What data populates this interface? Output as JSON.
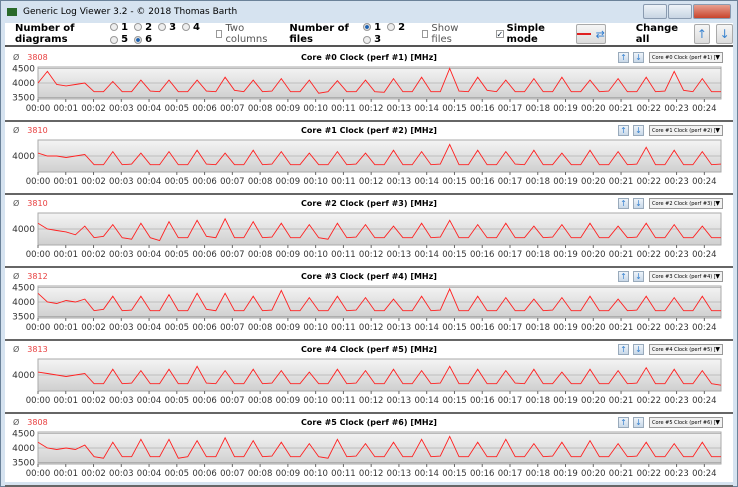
{
  "window": {
    "title": "Generic Log Viewer 3.2 - © 2018 Thomas Barth"
  },
  "toolbar": {
    "diagrams_label": "Number of diagrams",
    "diagram_options": [
      "1",
      "2",
      "3",
      "4",
      "5",
      "6"
    ],
    "diagrams_selected": "6",
    "two_columns": "Two columns",
    "files_label": "Number of files",
    "file_options": [
      "1",
      "2",
      "3"
    ],
    "files_selected": "1",
    "show_files": "Show files",
    "simple_mode": "Simple mode",
    "simple_mode_checked": true,
    "change_all": "Change all"
  },
  "colors": {
    "line": "#ff2020",
    "accent": "#3a84d0"
  },
  "chart_data": [
    {
      "type": "line",
      "title": "Core #0 Clock (perf #1) [MHz]",
      "avg": "3808",
      "select": "Core #0 Clock (perf #1) [V",
      "yticks": [
        3500,
        4000,
        4500
      ],
      "ylim": [
        3450,
        4550
      ],
      "xlim": [
        0,
        24.6
      ],
      "values": [
        4000,
        4400,
        3950,
        3900,
        3950,
        4000,
        3700,
        3700,
        4050,
        3700,
        3700,
        4100,
        3720,
        3700,
        4100,
        3700,
        3700,
        4100,
        3720,
        3700,
        4200,
        3750,
        3700,
        4100,
        3700,
        3720,
        4150,
        3700,
        3700,
        4100,
        3650,
        3700,
        4080,
        3700,
        3700,
        4100,
        3700,
        3680,
        4150,
        3700,
        3700,
        4200,
        3700,
        3700,
        4500,
        3720,
        3700,
        4200,
        3750,
        3700,
        4100,
        3700,
        3700,
        4150,
        3700,
        3700,
        4200,
        3700,
        3700,
        4100,
        3700,
        3720,
        4150,
        3700,
        3700,
        4200,
        3700,
        3720,
        4400,
        3750,
        3700,
        4150,
        3700,
        3700
      ]
    },
    {
      "type": "line",
      "title": "Core #1 Clock (perf #2) [MHz]",
      "avg": "3810",
      "select": "Core #1 Clock (perf #2) [V",
      "yticks": [
        4000
      ],
      "ylim": [
        3450,
        4550
      ],
      "xlim": [
        0,
        24.6
      ],
      "values": [
        4100,
        4000,
        4000,
        3950,
        4000,
        4050,
        3700,
        3700,
        4150,
        3700,
        3720,
        4100,
        3700,
        3700,
        4150,
        3700,
        3700,
        4200,
        3720,
        3700,
        4100,
        3700,
        3700,
        4200,
        3700,
        3720,
        4150,
        3700,
        3700,
        4100,
        3700,
        3700,
        4150,
        3700,
        3720,
        4100,
        3700,
        3700,
        4200,
        3700,
        3700,
        4150,
        3700,
        3720,
        4400,
        3700,
        3700,
        4200,
        3700,
        3700,
        4150,
        3720,
        3700,
        4200,
        3700,
        3700,
        4100,
        3700,
        3700,
        4200,
        3700,
        3700,
        4150,
        3700,
        3720,
        4300,
        3700,
        3700,
        4200,
        3700,
        3700,
        4150,
        3700,
        3720
      ]
    },
    {
      "type": "line",
      "title": "Core #2 Clock (perf #3) [MHz]",
      "avg": "3810",
      "select": "Core #2 Clock (perf #3) [V",
      "yticks": [
        4000
      ],
      "ylim": [
        3450,
        4550
      ],
      "xlim": [
        0,
        24.6
      ],
      "values": [
        4200,
        4000,
        3950,
        3900,
        3800,
        4100,
        3700,
        3750,
        4150,
        3700,
        3650,
        4200,
        3700,
        3600,
        4250,
        3700,
        3700,
        4300,
        3750,
        3700,
        4350,
        3700,
        3700,
        4250,
        3700,
        3720,
        4200,
        3700,
        3700,
        4150,
        3700,
        3650,
        4200,
        3700,
        3720,
        4150,
        3700,
        3700,
        4100,
        3700,
        3700,
        4200,
        3700,
        3720,
        4300,
        3700,
        3700,
        4150,
        3700,
        3700,
        4200,
        3700,
        3700,
        4100,
        3700,
        3720,
        4150,
        3700,
        3700,
        4200,
        3700,
        3700,
        4100,
        3700,
        3720,
        4200,
        3700,
        3700,
        4150,
        3700,
        3700,
        4100,
        3700,
        3700
      ]
    },
    {
      "type": "line",
      "title": "Core #3 Clock (perf #4) [MHz]",
      "avg": "3812",
      "select": "Core #3 Clock (perf #4) [V",
      "yticks": [
        3500,
        4000,
        4500
      ],
      "ylim": [
        3450,
        4550
      ],
      "xlim": [
        0,
        24.6
      ],
      "values": [
        4300,
        4000,
        3950,
        4050,
        4000,
        4100,
        3700,
        3750,
        4200,
        3700,
        3720,
        4200,
        3700,
        3700,
        4250,
        3700,
        3700,
        4300,
        3750,
        3700,
        4300,
        3700,
        3700,
        4200,
        3700,
        3720,
        4400,
        3700,
        3700,
        4150,
        3700,
        3700,
        4200,
        3700,
        3720,
        4150,
        3700,
        3700,
        4100,
        3700,
        3700,
        4200,
        3700,
        3720,
        4450,
        3700,
        3700,
        4200,
        3700,
        3700,
        4150,
        3700,
        3700,
        4100,
        3700,
        3720,
        4150,
        3700,
        3700,
        4200,
        3700,
        3700,
        4100,
        3700,
        3720,
        4200,
        3700,
        3700,
        4150,
        3700,
        3700,
        4200,
        3700,
        3700
      ]
    },
    {
      "type": "line",
      "title": "Core #4 Clock (perf #5) [MHz]",
      "avg": "3813",
      "select": "Core #4 Clock (perf #5) [V",
      "yticks": [
        4000
      ],
      "ylim": [
        3450,
        4550
      ],
      "xlim": [
        0,
        24.6
      ],
      "values": [
        4100,
        4050,
        4000,
        3950,
        4000,
        4050,
        3700,
        3700,
        4200,
        3700,
        3720,
        4150,
        3700,
        3700,
        4200,
        3700,
        3700,
        4300,
        3720,
        3700,
        4150,
        3700,
        3700,
        4200,
        3700,
        3720,
        4150,
        3700,
        3700,
        4100,
        3700,
        3700,
        4200,
        3700,
        3720,
        4150,
        3700,
        3700,
        4200,
        3700,
        3700,
        4150,
        3700,
        3720,
        4300,
        3700,
        3700,
        4200,
        3700,
        3700,
        4150,
        3720,
        3700,
        4200,
        3700,
        3700,
        4100,
        3700,
        3700,
        4200,
        3700,
        3700,
        4150,
        3700,
        3720,
        4250,
        3700,
        3700,
        4200,
        3700,
        3700,
        4150,
        3700,
        3650
      ]
    },
    {
      "type": "line",
      "title": "Core #5 Clock (perf #6) [MHz]",
      "avg": "3808",
      "select": "Core #5 Clock (perf #6) [V",
      "yticks": [
        3500,
        4000,
        4500
      ],
      "ylim": [
        3450,
        4550
      ],
      "xlim": [
        0,
        24.6
      ],
      "values": [
        4200,
        4000,
        3950,
        4000,
        3950,
        4100,
        3700,
        3650,
        4200,
        3700,
        3700,
        4300,
        3700,
        3700,
        4300,
        3650,
        3700,
        4250,
        3700,
        3700,
        4350,
        3700,
        3700,
        4250,
        3700,
        3720,
        4200,
        3700,
        3700,
        4150,
        3700,
        3650,
        4300,
        3700,
        3720,
        4150,
        3700,
        3700,
        4200,
        3700,
        3700,
        4300,
        3700,
        3720,
        4400,
        3700,
        3700,
        4200,
        3700,
        3700,
        4300,
        3700,
        3700,
        4150,
        3700,
        3720,
        4200,
        3700,
        3700,
        4250,
        3700,
        3700,
        4150,
        3700,
        3720,
        4200,
        3700,
        3700,
        4150,
        3700,
        3700,
        4200,
        3700,
        3700
      ]
    }
  ],
  "xticks": [
    "00:00",
    "00:01",
    "00:02",
    "00:03",
    "00:04",
    "00:05",
    "00:06",
    "00:07",
    "00:08",
    "00:09",
    "00:10",
    "00:11",
    "00:12",
    "00:13",
    "00:14",
    "00:15",
    "00:16",
    "00:17",
    "00:18",
    "00:19",
    "00:20",
    "00:21",
    "00:22",
    "00:23",
    "00:24"
  ]
}
